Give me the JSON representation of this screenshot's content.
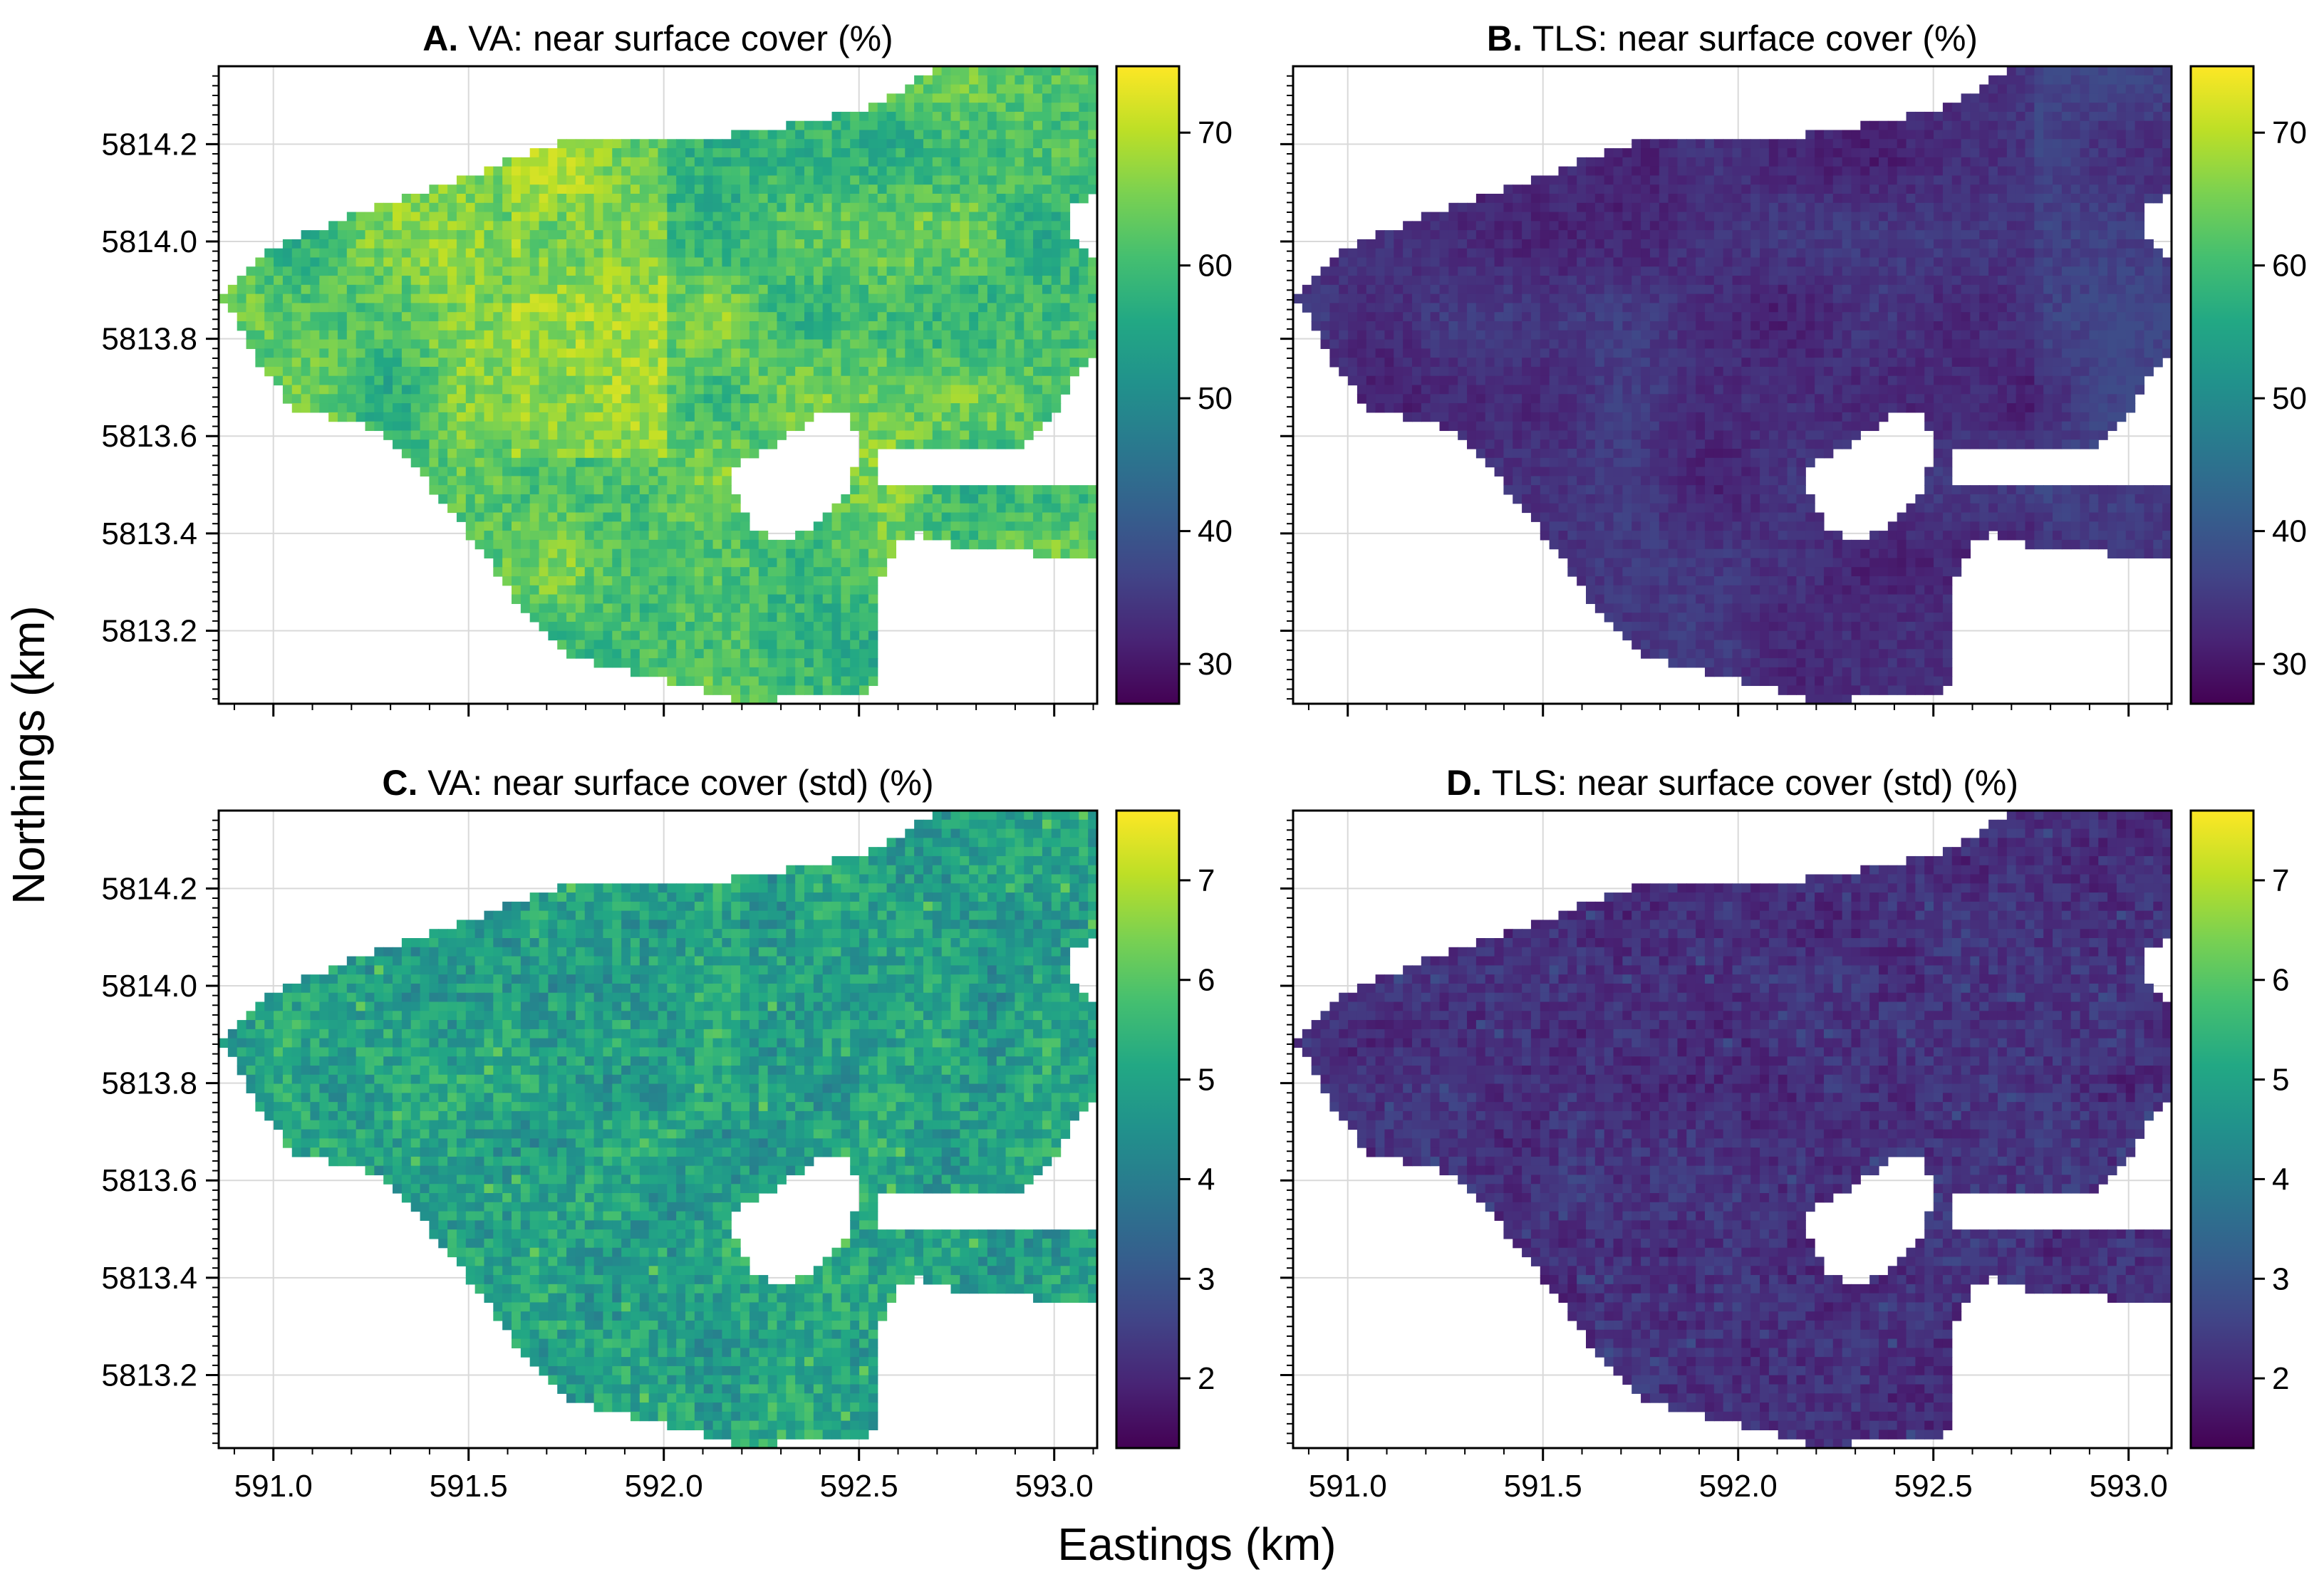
{
  "figure": {
    "xlabel": "Eastings (km)",
    "ylabel": "Northings (km)"
  },
  "colormap": {
    "name": "viridis",
    "stops": [
      "#440154",
      "#482475",
      "#414487",
      "#355f8d",
      "#2a788e",
      "#21918c",
      "#22a884",
      "#44bf70",
      "#7ad151",
      "#bddf26",
      "#fde725"
    ]
  },
  "chart_data": [
    {
      "type": "heatmap",
      "letter": "A.",
      "title": "VA: near surface cover (%)",
      "metric": "cover",
      "source": "VA",
      "color_range": [
        27,
        75
      ],
      "colorbar_ticks": [
        30,
        40,
        50,
        60,
        70
      ],
      "typical_range": [
        52,
        72
      ],
      "xlim": [
        590.86,
        593.11
      ],
      "ylim": [
        5813.05,
        5814.36
      ],
      "xticks": [
        "591.0",
        "591.5",
        "592.0",
        "592.5",
        "593.0"
      ],
      "yticks": [
        "5813.2",
        "5813.4",
        "5813.6",
        "5813.8",
        "5814.0",
        "5814.2"
      ]
    },
    {
      "type": "heatmap",
      "letter": "B.",
      "title": "TLS: near surface cover (%)",
      "metric": "cover",
      "source": "TLS",
      "color_range": [
        27,
        75
      ],
      "colorbar_ticks": [
        30,
        40,
        50,
        60,
        70
      ],
      "typical_range": [
        29,
        38
      ],
      "xlim": [
        590.86,
        593.11
      ],
      "ylim": [
        5813.05,
        5814.36
      ],
      "xticks": [
        "591.0",
        "591.5",
        "592.0",
        "592.5",
        "593.0"
      ],
      "yticks": [
        "5813.2",
        "5813.4",
        "5813.6",
        "5813.8",
        "5814.0",
        "5814.2"
      ]
    },
    {
      "type": "heatmap",
      "letter": "C.",
      "title": "VA: near surface cover (std) (%)",
      "metric": "std",
      "source": "VA",
      "color_range": [
        1.3,
        7.7
      ],
      "colorbar_ticks": [
        2,
        3,
        4,
        5,
        6,
        7
      ],
      "typical_range": [
        3.8,
        6.2
      ],
      "xlim": [
        590.86,
        593.11
      ],
      "ylim": [
        5813.05,
        5814.36
      ],
      "xticks": [
        "591.0",
        "591.5",
        "592.0",
        "592.5",
        "593.0"
      ],
      "yticks": [
        "5813.2",
        "5813.4",
        "5813.6",
        "5813.8",
        "5814.0",
        "5814.2"
      ]
    },
    {
      "type": "heatmap",
      "letter": "D.",
      "title": "TLS: near surface cover (std) (%)",
      "metric": "std",
      "source": "TLS",
      "color_range": [
        1.3,
        7.7
      ],
      "colorbar_ticks": [
        2,
        3,
        4,
        5,
        6,
        7
      ],
      "typical_range": [
        1.6,
        2.8
      ],
      "xlim": [
        590.86,
        593.11
      ],
      "ylim": [
        5813.05,
        5814.36
      ],
      "xticks": [
        "591.0",
        "591.5",
        "592.0",
        "592.5",
        "593.0"
      ],
      "yticks": [
        "5813.2",
        "5813.4",
        "5813.6",
        "5813.8",
        "5814.0",
        "5814.2"
      ]
    }
  ]
}
